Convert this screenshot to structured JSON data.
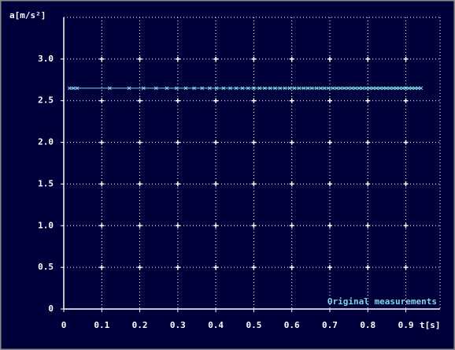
{
  "chart_data": {
    "type": "line",
    "x_label": "t[s]",
    "y_label": "a[m/s²]",
    "x": [
      0.015,
      0.025,
      0.035,
      0.121,
      0.172,
      0.21,
      0.243,
      0.271,
      0.297,
      0.321,
      0.343,
      0.364,
      0.384,
      0.402,
      0.42,
      0.438,
      0.454,
      0.47,
      0.485,
      0.5,
      0.515,
      0.529,
      0.543,
      0.556,
      0.569,
      0.582,
      0.594,
      0.607,
      0.619,
      0.631,
      0.642,
      0.653,
      0.665,
      0.676,
      0.686,
      0.697,
      0.708,
      0.718,
      0.728,
      0.738,
      0.748,
      0.758,
      0.767,
      0.777,
      0.786,
      0.796,
      0.805,
      0.814,
      0.823,
      0.832,
      0.841,
      0.849,
      0.858,
      0.867,
      0.875,
      0.883,
      0.892,
      0.9,
      0.908,
      0.916,
      0.924,
      0.932,
      0.94
    ],
    "series": [
      {
        "name": "Original measurements",
        "color": "#7fd8e0",
        "values": [
          2.65,
          2.65,
          2.65,
          2.65,
          2.65,
          2.65,
          2.65,
          2.65,
          2.65,
          2.65,
          2.65,
          2.65,
          2.65,
          2.65,
          2.65,
          2.65,
          2.65,
          2.65,
          2.65,
          2.65,
          2.65,
          2.65,
          2.65,
          2.65,
          2.65,
          2.65,
          2.65,
          2.65,
          2.65,
          2.65,
          2.65,
          2.65,
          2.65,
          2.65,
          2.65,
          2.65,
          2.65,
          2.65,
          2.65,
          2.65,
          2.65,
          2.65,
          2.65,
          2.65,
          2.65,
          2.65,
          2.65,
          2.65,
          2.65,
          2.65,
          2.65,
          2.65,
          2.65,
          2.65,
          2.65,
          2.65,
          2.65,
          2.65,
          2.65,
          2.65,
          2.65,
          2.65,
          2.65
        ]
      }
    ],
    "xlim": [
      0,
      0.99
    ],
    "xticks": [
      0,
      0.1,
      0.2,
      0.3,
      0.4,
      0.5,
      0.6,
      0.7,
      0.8,
      0.9
    ],
    "ylim": [
      0,
      3.5
    ],
    "yticks": [
      0,
      0.5,
      {
        "value": 1,
        "label": "1.0"
      },
      1.5,
      {
        "value": 2,
        "label": "2.0"
      },
      2.5,
      {
        "value": 3,
        "label": "3.0"
      }
    ],
    "grid": true,
    "legend": "lower right"
  }
}
